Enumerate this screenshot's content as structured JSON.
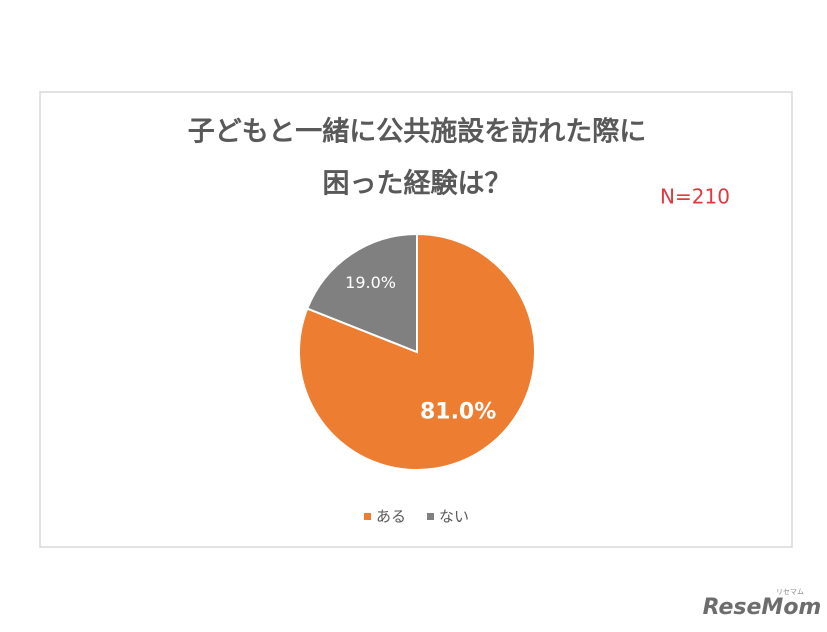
{
  "chart_data": {
    "type": "pie",
    "title": [
      "子どもと一緒に公共施設を訪れた際に",
      "困った経験は？"
    ],
    "annotation": "N=210",
    "categories": [
      "ある",
      "ない"
    ],
    "values": [
      81.0,
      19.0
    ],
    "value_labels": [
      "81.0%",
      "19.0%"
    ],
    "colors": [
      "#ED7D31",
      "#808080"
    ],
    "legend": "bottom"
  },
  "watermark": {
    "sub": "リセマム",
    "text": "ReseMom"
  }
}
